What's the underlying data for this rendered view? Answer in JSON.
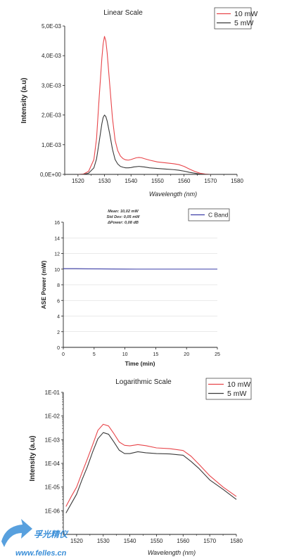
{
  "chart_data": [
    {
      "type": "line",
      "title": "Linear Scale",
      "xlabel": "Wavelength (nm)",
      "ylabel": "Intensity (a.u)",
      "xlim": [
        1515,
        1580
      ],
      "ylim": [
        0,
        0.005
      ],
      "x_ticks": [
        1520,
        1530,
        1540,
        1550,
        1560,
        1570,
        1580
      ],
      "y_ticks": [
        0,
        0.001,
        0.002,
        0.003,
        0.004,
        0.005
      ],
      "y_tick_labels": [
        "0,0E+00",
        "1,0E-03",
        "2,0E-03",
        "3,0E-03",
        "4,0E-03",
        "5,0E-03"
      ],
      "legend_position": "top-right",
      "series": [
        {
          "name": "10 mW",
          "color": "#e8454a",
          "x": [
            1520,
            1522,
            1524,
            1526,
            1527,
            1528,
            1529,
            1529.5,
            1530,
            1530.5,
            1531,
            1532,
            1533,
            1534,
            1535,
            1536,
            1537,
            1538,
            1539,
            1540,
            1541,
            1542,
            1543,
            1544,
            1545,
            1547,
            1550,
            1553,
            1556,
            1558,
            1560,
            1562,
            1564,
            1566,
            1568,
            1570
          ],
          "y": [
            0,
            1e-05,
            0.0001,
            0.0005,
            0.0012,
            0.0026,
            0.0039,
            0.0044,
            0.00465,
            0.0045,
            0.0041,
            0.003,
            0.0019,
            0.00115,
            0.0008,
            0.00062,
            0.00053,
            0.00049,
            0.00048,
            0.0005,
            0.00053,
            0.00056,
            0.00057,
            0.00056,
            0.00053,
            0.00048,
            0.00042,
            0.00039,
            0.00036,
            0.00033,
            0.00027,
            0.00018,
            0.0001,
            4e-05,
            1e-05,
            0
          ]
        },
        {
          "name": "5 mW",
          "color": "#3a3a3a",
          "x": [
            1520,
            1522,
            1524,
            1526,
            1527,
            1528,
            1529,
            1529.5,
            1530,
            1530.5,
            1531,
            1532,
            1533,
            1534,
            1535,
            1536,
            1537,
            1538,
            1539,
            1540,
            1541,
            1542,
            1543,
            1544,
            1545,
            1547,
            1550,
            1553,
            1556,
            1558,
            1560,
            1562,
            1564,
            1566,
            1568,
            1570
          ],
          "y": [
            0,
            0,
            4e-05,
            0.00022,
            0.00052,
            0.0011,
            0.0017,
            0.00192,
            0.002,
            0.00195,
            0.0018,
            0.00135,
            0.00085,
            0.0005,
            0.00035,
            0.00027,
            0.00024,
            0.00022,
            0.00022,
            0.00023,
            0.00025,
            0.00026,
            0.00027,
            0.00026,
            0.00025,
            0.00022,
            0.0002,
            0.00018,
            0.00016,
            0.00014,
            0.00011,
            7e-05,
            4e-05,
            1e-05,
            0,
            0
          ]
        }
      ]
    },
    {
      "type": "line",
      "title": "",
      "xlabel": "Time (min)",
      "ylabel": "ASE Power (mW)",
      "xlim": [
        0,
        25
      ],
      "ylim": [
        0,
        16
      ],
      "x_ticks": [
        0,
        5,
        10,
        15,
        20,
        25
      ],
      "y_ticks": [
        0,
        2,
        4,
        6,
        8,
        10,
        12,
        14,
        16
      ],
      "grid": true,
      "legend_position": "top-right",
      "annotations": [
        "Mean: 10,02 mW",
        "Std Dev: 0,05 mW",
        "ΔPower: 0,08 dB"
      ],
      "series": [
        {
          "name": "C Band",
          "color": "#3d3fa8",
          "x": [
            0,
            2,
            4,
            6,
            8,
            10,
            12,
            14,
            16,
            18,
            20,
            22,
            25
          ],
          "y": [
            10.06,
            10.06,
            10.04,
            10.03,
            10.02,
            10.01,
            10.0,
            10.0,
            10.0,
            10.0,
            10.0,
            10.0,
            10.0
          ]
        }
      ]
    },
    {
      "type": "line",
      "title": "Logarithmic Scale",
      "xlabel": "Wavelength (nm)",
      "ylabel": "Intensity (a.u)",
      "xlim": [
        1515,
        1580
      ],
      "ylim": [
        1e-07,
        0.1
      ],
      "y_scale": "log",
      "x_ticks": [
        1520,
        1530,
        1540,
        1550,
        1560,
        1570,
        1580
      ],
      "y_ticks": [
        1e-06,
        1e-05,
        0.0001,
        0.001,
        0.01,
        0.1
      ],
      "y_tick_labels": [
        "1E-06",
        "1E-05",
        "1E-04",
        "1E-03",
        "1E-02",
        "1E-01"
      ],
      "legend_position": "top-right",
      "series": [
        {
          "name": "10 mW",
          "color": "#e8454a",
          "x": [
            1516,
            1518,
            1520,
            1522,
            1524,
            1526,
            1528,
            1530,
            1532,
            1534,
            1536,
            1538,
            1540,
            1543,
            1546,
            1550,
            1555,
            1560,
            1563,
            1566,
            1570,
            1575,
            1580
          ],
          "y": [
            1.5e-06,
            4e-06,
            1e-05,
            4e-05,
            0.00015,
            0.0006,
            0.0025,
            0.0045,
            0.0038,
            0.0018,
            0.0008,
            0.00058,
            0.00055,
            0.00062,
            0.00056,
            0.00045,
            0.00042,
            0.00035,
            0.0002,
            9e-05,
            3e-05,
            1e-05,
            4e-06
          ]
        },
        {
          "name": "5 mW",
          "color": "#3a3a3a",
          "x": [
            1516,
            1518,
            1520,
            1522,
            1524,
            1526,
            1528,
            1530,
            1532,
            1534,
            1536,
            1538,
            1540,
            1543,
            1546,
            1550,
            1555,
            1560,
            1563,
            1566,
            1570,
            1575,
            1580
          ],
          "y": [
            8e-07,
            2e-06,
            5e-06,
            2e-05,
            7e-05,
            0.0003,
            0.0011,
            0.002,
            0.0017,
            0.0008,
            0.00036,
            0.00026,
            0.00026,
            0.00031,
            0.00028,
            0.00026,
            0.00025,
            0.00022,
            0.00012,
            6e-05,
            2e-05,
            8e-06,
            3e-06
          ]
        }
      ]
    }
  ],
  "watermark": {
    "name": "孚光精仪",
    "url": "www.felles.cn"
  }
}
